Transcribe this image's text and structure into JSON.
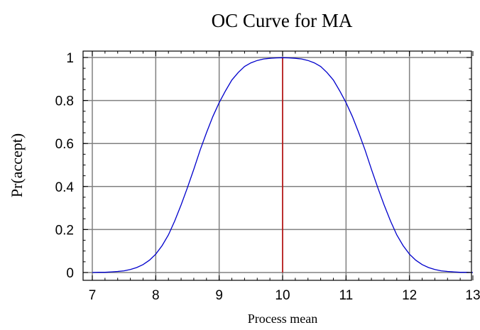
{
  "chart_data": {
    "type": "line",
    "title": "OC Curve for MA",
    "xlabel": "Process mean",
    "ylabel": "Pr(accept)",
    "xlim": [
      7,
      13
    ],
    "ylim": [
      0,
      1
    ],
    "xticks": [
      7,
      8,
      9,
      10,
      11,
      12,
      13
    ],
    "yticks": [
      0,
      0.2,
      0.4,
      0.6,
      0.8,
      1
    ],
    "ytick_labels": [
      "0",
      "0.2",
      "0.4",
      "0.6",
      "0.8",
      "1"
    ],
    "grid": true,
    "legend": "none",
    "series": [
      {
        "color": "#0000cc",
        "x": [
          7.0,
          7.1,
          7.2,
          7.3,
          7.4,
          7.5,
          7.6,
          7.7,
          7.8,
          7.9,
          8.0,
          8.1,
          8.2,
          8.3,
          8.4,
          8.5,
          8.6,
          8.7,
          8.8,
          8.9,
          9.0,
          9.1,
          9.2,
          9.3,
          9.4,
          9.5,
          9.6,
          9.7,
          9.8,
          9.9,
          10.0,
          10.1,
          10.2,
          10.3,
          10.4,
          10.5,
          10.6,
          10.7,
          10.8,
          10.9,
          11.0,
          11.1,
          11.2,
          11.3,
          11.4,
          11.5,
          11.6,
          11.7,
          11.8,
          11.9,
          12.0,
          12.1,
          12.2,
          12.3,
          12.4,
          12.5,
          12.6,
          12.7,
          12.8,
          12.9,
          13.0
        ],
        "y": [
          0.0,
          0.001,
          0.001,
          0.003,
          0.005,
          0.008,
          0.014,
          0.023,
          0.037,
          0.057,
          0.085,
          0.125,
          0.175,
          0.24,
          0.315,
          0.395,
          0.48,
          0.57,
          0.65,
          0.725,
          0.79,
          0.845,
          0.895,
          0.93,
          0.958,
          0.975,
          0.986,
          0.993,
          0.996,
          0.998,
          0.999,
          0.998,
          0.996,
          0.993,
          0.986,
          0.975,
          0.958,
          0.93,
          0.895,
          0.845,
          0.79,
          0.725,
          0.65,
          0.57,
          0.48,
          0.395,
          0.315,
          0.24,
          0.175,
          0.125,
          0.085,
          0.057,
          0.037,
          0.023,
          0.014,
          0.008,
          0.005,
          0.003,
          0.001,
          0.001,
          0.0
        ]
      }
    ],
    "reference_line": {
      "x": 10,
      "color": "#bb0000"
    }
  }
}
